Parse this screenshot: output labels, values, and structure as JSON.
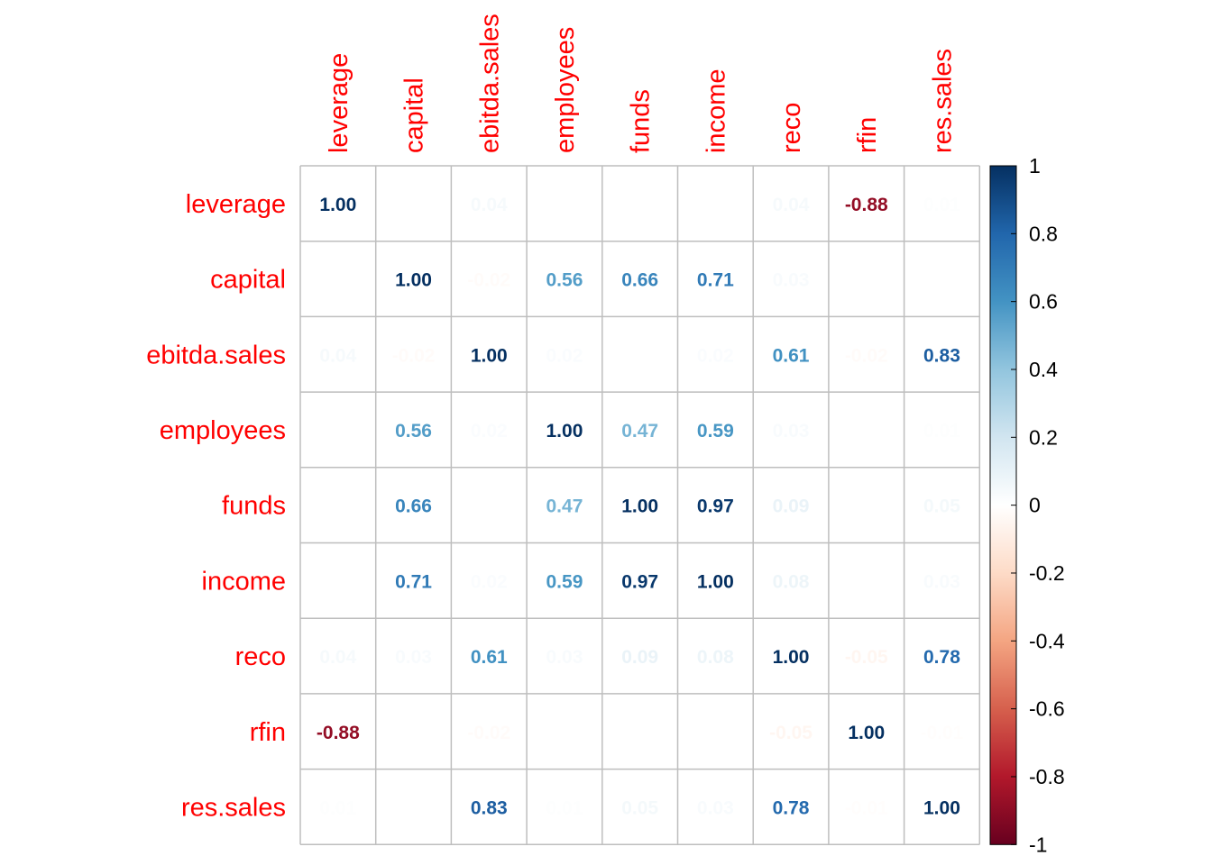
{
  "chart_data": {
    "type": "heatmap",
    "title": "",
    "variables": [
      "leverage",
      "capital",
      "ebitda.sales",
      "employees",
      "funds",
      "income",
      "reco",
      "rfin",
      "res.sales"
    ],
    "matrix": [
      [
        1.0,
        0.0,
        0.04,
        0.0,
        0.0,
        0.0,
        0.04,
        -0.88,
        0.01
      ],
      [
        0.0,
        1.0,
        -0.02,
        0.56,
        0.66,
        0.71,
        0.03,
        0.0,
        0.0
      ],
      [
        0.04,
        -0.02,
        1.0,
        0.02,
        0.0,
        0.02,
        0.61,
        -0.02,
        0.83
      ],
      [
        0.0,
        0.56,
        0.02,
        1.0,
        0.47,
        0.59,
        0.03,
        0.0,
        0.01
      ],
      [
        0.0,
        0.66,
        0.0,
        0.47,
        1.0,
        0.97,
        0.09,
        0.0,
        0.05
      ],
      [
        0.0,
        0.71,
        0.02,
        0.59,
        0.97,
        1.0,
        0.08,
        0.0,
        0.03
      ],
      [
        0.04,
        0.03,
        0.61,
        0.03,
        0.09,
        0.08,
        1.0,
        -0.05,
        0.78
      ],
      [
        -0.88,
        0.0,
        -0.02,
        0.0,
        0.0,
        0.0,
        -0.05,
        1.0,
        -0.01
      ],
      [
        0.01,
        0.0,
        0.83,
        0.01,
        0.05,
        0.03,
        0.78,
        -0.01,
        1.0
      ]
    ],
    "color_scale": {
      "min": -1,
      "max": 1,
      "ticks": [
        "1",
        "0.8",
        "0.6",
        "0.4",
        "0.2",
        "0",
        "-0.2",
        "-0.4",
        "-0.6",
        "-0.8",
        "-1"
      ],
      "colors": [
        "#67001F",
        "#B2182B",
        "#D6604D",
        "#F4A582",
        "#FDDBC7",
        "#FFFFFF",
        "#D1E5F0",
        "#92C5DE",
        "#4393C3",
        "#2166AC",
        "#053061"
      ]
    },
    "label_color": "#FF0000",
    "grid": true
  }
}
